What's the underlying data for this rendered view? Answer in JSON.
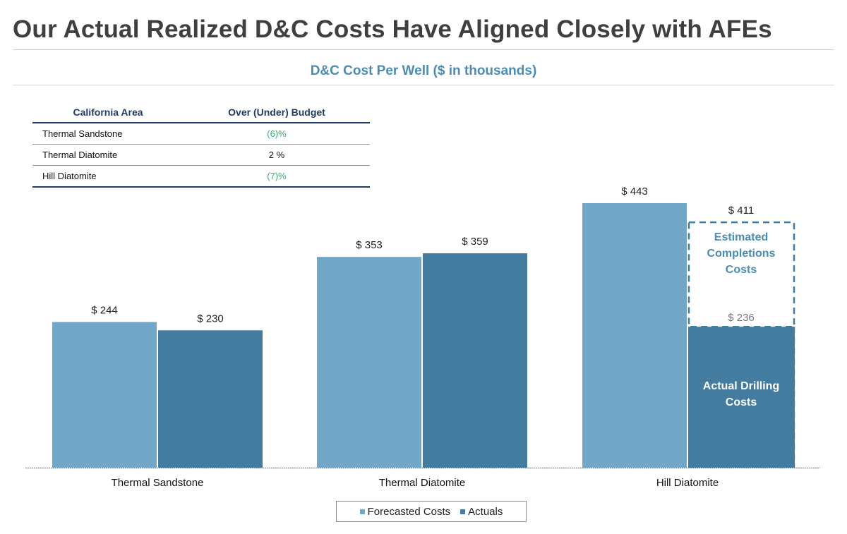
{
  "page": {
    "title": "Our Actual Realized D&C Costs Have Aligned Closely with AFEs"
  },
  "table": {
    "headers": [
      "California Area",
      "Over (Under) Budget"
    ],
    "rows": [
      {
        "area": "Thermal Sandstone",
        "value": "(6)%",
        "negative": true
      },
      {
        "area": "Thermal Diatomite",
        "value": "2 %",
        "negative": false
      },
      {
        "area": "Hill Diatomite",
        "value": "(7)%",
        "negative": true
      }
    ]
  },
  "chart_data": {
    "type": "bar",
    "title": "D&C Cost Per Well ($ in thousands)",
    "categories": [
      "Thermal Sandstone",
      "Thermal Diatomite",
      "Hill Diatomite"
    ],
    "series": [
      {
        "name": "Forecasted Costs",
        "values": [
          244,
          353,
          443
        ],
        "color": "#72a7c8"
      },
      {
        "name": "Actuals",
        "values": [
          230,
          359,
          411
        ],
        "color": "#437c9e"
      }
    ],
    "data_labels": {
      "Forecasted Costs": [
        "$ 244",
        "$ 353",
        "$ 443"
      ],
      "Actuals": [
        "$ 230",
        "$ 359",
        "$ 411"
      ]
    },
    "stacked_segment": {
      "category": "Hill Diatomite",
      "series": "Actuals",
      "base_value": 236,
      "base_label": "$ 236",
      "base_text": "Actual Drilling Costs",
      "top_text": "Estimated Completions Costs",
      "top_style": "dashed-outline"
    },
    "ylim": [
      0,
      520
    ],
    "grid": false,
    "legend_position": "bottom-center"
  },
  "colors": {
    "forecast": "#72a7c8",
    "actual": "#437c9e",
    "subtitle": "#4a8db1",
    "table_header": "#1f3b67",
    "negative_value": "#3aaa6e"
  }
}
